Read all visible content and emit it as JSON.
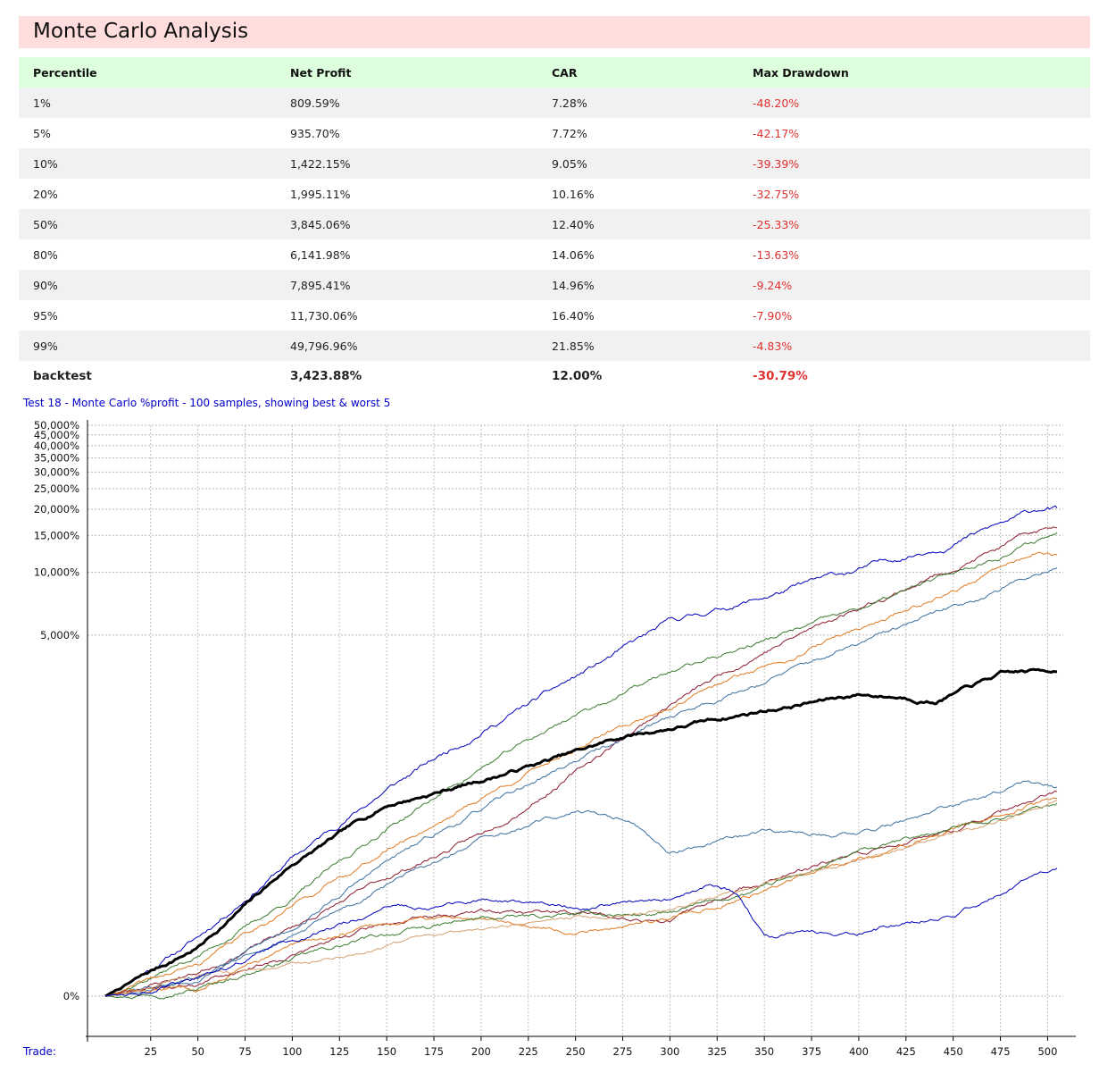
{
  "header": {
    "title": "Monte Carlo Analysis"
  },
  "table": {
    "columns": [
      "Percentile",
      "Net Profit",
      "CAR",
      "Max Drawdown"
    ],
    "rows": [
      [
        "1%",
        "809.59%",
        "7.28%",
        "-48.20%"
      ],
      [
        "5%",
        "935.70%",
        "7.72%",
        "-42.17%"
      ],
      [
        "10%",
        "1,422.15%",
        "9.05%",
        "-39.39%"
      ],
      [
        "20%",
        "1,995.11%",
        "10.16%",
        "-32.75%"
      ],
      [
        "50%",
        "3,845.06%",
        "12.40%",
        "-25.33%"
      ],
      [
        "80%",
        "6,141.98%",
        "14.06%",
        "-13.63%"
      ],
      [
        "90%",
        "7,895.41%",
        "14.96%",
        "-9.24%"
      ],
      [
        "95%",
        "11,730.06%",
        "16.40%",
        "-7.90%"
      ],
      [
        "99%",
        "49,796.96%",
        "21.85%",
        "-4.83%"
      ]
    ],
    "backtest": [
      "backtest",
      "3,423.88%",
      "12.00%",
      "-30.79%"
    ],
    "negative_color": "#e03030"
  },
  "chart_data": {
    "type": "line",
    "title": "Test 18 - Monte Carlo %profit - 100 samples, showing best & worst 5",
    "xlabel": "Trade:",
    "xlim": [
      1,
      505
    ],
    "x_ticks": [
      25,
      50,
      75,
      100,
      125,
      150,
      175,
      200,
      225,
      250,
      275,
      300,
      325,
      350,
      375,
      400,
      425,
      450,
      475,
      500
    ],
    "x_tick_labels": [
      "25",
      "50",
      "75",
      "100",
      "125",
      "150",
      "175",
      "200",
      "225",
      "250",
      "275",
      "300",
      "325",
      "350",
      "375",
      "400",
      "425",
      "450",
      "475",
      "500"
    ],
    "y_scale": "log(1 + profit%/100)",
    "y_ticks": [
      0,
      5000,
      10000,
      15000,
      20000,
      25000,
      30000,
      35000,
      40000,
      45000,
      50000
    ],
    "y_tick_labels": [
      "0%",
      "5,000%",
      "10,000%",
      "15,000%",
      "20,000%",
      "25,000%",
      "30,000%",
      "35,000%",
      "40,000%",
      "45,000%",
      "50,000%"
    ],
    "ylim": [
      -50,
      50000
    ],
    "grid": true,
    "legend": "none",
    "series": [
      {
        "color": "#0000bb",
        "width": 1,
        "seed": 11,
        "vol": 0.035,
        "points": [
          [
            1,
            0
          ],
          [
            50,
            90
          ],
          [
            100,
            350
          ],
          [
            150,
            850
          ],
          [
            200,
            1700
          ],
          [
            250,
            3100
          ],
          [
            300,
            5700
          ],
          [
            325,
            6600
          ],
          [
            350,
            7600
          ],
          [
            375,
            8900
          ],
          [
            400,
            10200
          ],
          [
            450,
            14000
          ],
          [
            500,
            20500
          ],
          [
            505,
            20000
          ]
        ]
      },
      {
        "color": "#8b1a2e",
        "width": 1,
        "seed": 23,
        "vol": 0.03,
        "points": [
          [
            1,
            0
          ],
          [
            50,
            30
          ],
          [
            100,
            110
          ],
          [
            150,
            260
          ],
          [
            200,
            480
          ],
          [
            250,
            1050
          ],
          [
            300,
            2300
          ],
          [
            350,
            4200
          ],
          [
            400,
            6800
          ],
          [
            450,
            10500
          ],
          [
            490,
            15000
          ],
          [
            505,
            16500
          ]
        ]
      },
      {
        "color": "#3b7a2f",
        "width": 1,
        "seed": 37,
        "vol": 0.03,
        "points": [
          [
            1,
            0
          ],
          [
            50,
            55
          ],
          [
            100,
            190
          ],
          [
            150,
            520
          ],
          [
            200,
            1100
          ],
          [
            250,
            2050
          ],
          [
            300,
            3300
          ],
          [
            350,
            4700
          ],
          [
            400,
            6600
          ],
          [
            450,
            9800
          ],
          [
            505,
            15500
          ]
        ]
      },
      {
        "color": "#e07a20",
        "width": 1,
        "seed": 41,
        "vol": 0.03,
        "points": [
          [
            1,
            0
          ],
          [
            50,
            40
          ],
          [
            100,
            170
          ],
          [
            150,
            390
          ],
          [
            200,
            770
          ],
          [
            250,
            1400
          ],
          [
            300,
            2250
          ],
          [
            350,
            3500
          ],
          [
            400,
            5400
          ],
          [
            450,
            8200
          ],
          [
            495,
            12500
          ],
          [
            505,
            11800
          ]
        ]
      },
      {
        "color": "#3a6fa0",
        "width": 1,
        "seed": 53,
        "vol": 0.03,
        "points": [
          [
            1,
            0
          ],
          [
            50,
            25
          ],
          [
            100,
            110
          ],
          [
            150,
            330
          ],
          [
            200,
            660
          ],
          [
            250,
            1200
          ],
          [
            300,
            2000
          ],
          [
            350,
            3000
          ],
          [
            400,
            4500
          ],
          [
            450,
            6700
          ],
          [
            505,
            10800
          ]
        ]
      },
      {
        "color": "#000000",
        "width": 3,
        "seed": 7,
        "vol": 0.025,
        "points": [
          [
            1,
            0
          ],
          [
            50,
            70
          ],
          [
            100,
            320
          ],
          [
            150,
            700
          ],
          [
            200,
            950
          ],
          [
            250,
            1320
          ],
          [
            275,
            1580
          ],
          [
            300,
            1750
          ],
          [
            350,
            2150
          ],
          [
            400,
            2580
          ],
          [
            425,
            2500
          ],
          [
            440,
            2400
          ],
          [
            450,
            2600
          ],
          [
            475,
            3200
          ],
          [
            505,
            3400
          ]
        ]
      },
      {
        "color": "#3a6fa0",
        "width": 1,
        "seed": 61,
        "vol": 0.03,
        "points": [
          [
            1,
            0
          ],
          [
            50,
            20
          ],
          [
            100,
            90
          ],
          [
            150,
            230
          ],
          [
            200,
            440
          ],
          [
            250,
            650
          ],
          [
            280,
            580
          ],
          [
            300,
            380
          ],
          [
            350,
            480
          ],
          [
            400,
            500
          ],
          [
            450,
            680
          ],
          [
            490,
            940
          ],
          [
            505,
            850
          ]
        ]
      },
      {
        "color": "#8b1a2e",
        "width": 1,
        "seed": 71,
        "vol": 0.03,
        "points": [
          [
            1,
            0
          ],
          [
            50,
            15
          ],
          [
            100,
            60
          ],
          [
            150,
            120
          ],
          [
            200,
            150
          ],
          [
            250,
            150
          ],
          [
            300,
            130
          ],
          [
            350,
            250
          ],
          [
            400,
            360
          ],
          [
            450,
            520
          ],
          [
            505,
            790
          ]
        ]
      },
      {
        "color": "#e07a20",
        "width": 1,
        "seed": 83,
        "vol": 0.03,
        "points": [
          [
            1,
            0
          ],
          [
            50,
            12
          ],
          [
            100,
            70
          ],
          [
            150,
            120
          ],
          [
            200,
            140
          ],
          [
            250,
            105
          ],
          [
            300,
            135
          ],
          [
            350,
            220
          ],
          [
            400,
            350
          ],
          [
            450,
            500
          ],
          [
            505,
            790
          ]
        ]
      },
      {
        "color": "#3b7a2f",
        "width": 1,
        "seed": 97,
        "vol": 0.03,
        "points": [
          [
            1,
            0
          ],
          [
            50,
            10
          ],
          [
            100,
            50
          ],
          [
            150,
            95
          ],
          [
            200,
            130
          ],
          [
            250,
            140
          ],
          [
            300,
            145
          ],
          [
            350,
            220
          ],
          [
            400,
            370
          ],
          [
            450,
            520
          ],
          [
            505,
            720
          ]
        ]
      },
      {
        "color": "#d4a070",
        "width": 1,
        "seed": 103,
        "vol": 0.025,
        "points": [
          [
            1,
            0
          ],
          [
            100,
            40
          ],
          [
            200,
            110
          ],
          [
            300,
            160
          ],
          [
            400,
            330
          ],
          [
            505,
            720
          ]
        ]
      },
      {
        "color": "#0000bb",
        "width": 1,
        "seed": 113,
        "vol": 0.03,
        "points": [
          [
            1,
            0
          ],
          [
            50,
            20
          ],
          [
            100,
            85
          ],
          [
            150,
            160
          ],
          [
            200,
            180
          ],
          [
            250,
            165
          ],
          [
            300,
            185
          ],
          [
            320,
            235
          ],
          [
            335,
            205
          ],
          [
            350,
            90
          ],
          [
            400,
            100
          ],
          [
            420,
            115
          ],
          [
            450,
            140
          ],
          [
            505,
            310
          ]
        ]
      }
    ]
  }
}
